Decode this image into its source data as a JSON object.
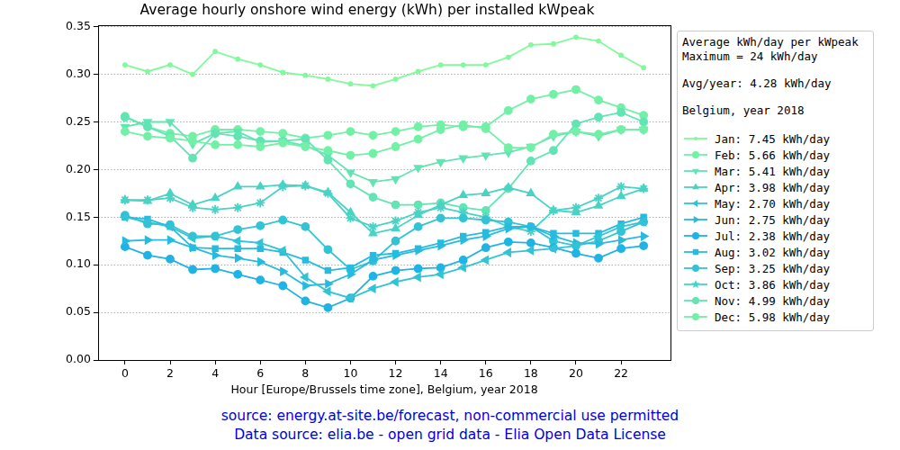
{
  "chart_data": {
    "type": "line",
    "title": "Average hourly onshore wind energy (kWh) per installed kWpeak",
    "x_label": "Hour [Europe/Brussels time zone], Belgium, year 2018",
    "x": [
      0,
      1,
      2,
      3,
      4,
      5,
      6,
      7,
      8,
      9,
      10,
      11,
      12,
      13,
      14,
      15,
      16,
      17,
      18,
      19,
      20,
      21,
      22,
      23
    ],
    "xlim": [
      -1.2,
      24.2
    ],
    "xticks": [
      0,
      2,
      4,
      6,
      8,
      10,
      12,
      14,
      16,
      18,
      20,
      22
    ],
    "ylim": [
      0,
      0.352
    ],
    "yticks": [
      {
        "value": 0,
        "label": "0.00"
      },
      0.05,
      {
        "value": 0.1,
        "label": "0.10"
      },
      0.15,
      {
        "value": 0.2,
        "label": "0.20"
      },
      0.25,
      {
        "value": 0.3,
        "label": "0.30"
      },
      0.35
    ],
    "grid": "y",
    "legend": "right",
    "legend_title": [
      [
        "Average kWh/day per kWpeak",
        "Maximum = 24 kWh/day"
      ],
      [
        "Avg/year: 4.28 kWh/day"
      ],
      [
        "Belgium, year 2018"
      ]
    ],
    "annotations": [
      "source: energy.at-site.be/forecast, non-commercial use permitted",
      "Data source: elia.be - open grid data - Elia Open Data License"
    ],
    "series": [
      {
        "name": "Jan: 7.45 kWh/day",
        "color": "#80fa9a",
        "marker": "point",
        "values": [
          0.31,
          0.303,
          0.31,
          0.3,
          0.324,
          0.316,
          0.31,
          0.302,
          0.299,
          0.295,
          0.29,
          0.288,
          0.295,
          0.303,
          0.31,
          0.31,
          0.31,
          0.318,
          0.331,
          0.332,
          0.339,
          0.335,
          0.32,
          0.307
        ]
      },
      {
        "name": "Feb: 5.66 kWh/day",
        "color": "#72f0a6",
        "marker": "circle",
        "values": [
          0.24,
          0.235,
          0.233,
          0.23,
          0.226,
          0.226,
          0.224,
          0.228,
          0.224,
          0.22,
          0.215,
          0.217,
          0.224,
          0.232,
          0.242,
          0.247,
          0.243,
          0.223,
          0.223,
          0.237,
          0.24,
          0.237,
          0.242,
          0.242
        ]
      },
      {
        "name": "Mar: 5.41 kWh/day",
        "color": "#62e4b4",
        "marker": "triangle_down",
        "values": [
          0.245,
          0.25,
          0.25,
          0.227,
          0.238,
          0.24,
          0.229,
          0.23,
          0.225,
          0.215,
          0.197,
          0.187,
          0.19,
          0.202,
          0.208,
          0.212,
          0.215,
          0.218,
          0.224,
          0.235,
          0.24,
          0.235,
          0.242,
          0.242
        ]
      },
      {
        "name": "Apr: 3.98 kWh/day",
        "color": "#48d3c5",
        "marker": "triangle_up",
        "values": [
          0.168,
          0.167,
          0.175,
          0.163,
          0.17,
          0.182,
          0.182,
          0.184,
          0.183,
          0.176,
          0.155,
          0.133,
          0.138,
          0.152,
          0.163,
          0.173,
          0.175,
          0.181,
          0.175,
          0.157,
          0.155,
          0.162,
          0.172,
          0.18
        ]
      },
      {
        "name": "May: 2.70 kWh/day",
        "color": "#32c4d5",
        "marker": "triangle_left",
        "values": [
          0.15,
          0.145,
          0.14,
          0.128,
          0.13,
          0.125,
          0.123,
          0.115,
          0.087,
          0.072,
          0.065,
          0.075,
          0.082,
          0.087,
          0.09,
          0.097,
          0.105,
          0.113,
          0.115,
          0.117,
          0.12,
          0.13,
          0.14,
          0.145
        ]
      },
      {
        "name": "Jun: 2.75 kWh/day",
        "color": "#26bbdf",
        "marker": "triangle_right",
        "values": [
          0.125,
          0.126,
          0.126,
          0.118,
          0.11,
          0.107,
          0.103,
          0.093,
          0.078,
          0.08,
          0.09,
          0.105,
          0.11,
          0.115,
          0.12,
          0.126,
          0.13,
          0.138,
          0.14,
          0.13,
          0.123,
          0.122,
          0.126,
          0.13
        ]
      },
      {
        "name": "Jul: 2.38 kWh/day",
        "color": "#1fb3e6",
        "marker": "circle",
        "values": [
          0.119,
          0.11,
          0.106,
          0.095,
          0.096,
          0.09,
          0.084,
          0.078,
          0.062,
          0.055,
          0.065,
          0.088,
          0.094,
          0.096,
          0.097,
          0.105,
          0.118,
          0.124,
          0.123,
          0.118,
          0.112,
          0.107,
          0.117,
          0.12
        ]
      },
      {
        "name": "Aug: 3.02 kWh/day",
        "color": "#26bbdf",
        "marker": "square",
        "values": [
          0.15,
          0.148,
          0.14,
          0.118,
          0.117,
          0.117,
          0.117,
          0.113,
          0.105,
          0.094,
          0.097,
          0.11,
          0.112,
          0.117,
          0.123,
          0.13,
          0.134,
          0.14,
          0.14,
          0.133,
          0.133,
          0.133,
          0.143,
          0.15
        ]
      },
      {
        "name": "Sep: 3.25 kWh/day",
        "color": "#32c4d5",
        "marker": "hexagon",
        "values": [
          0.152,
          0.143,
          0.142,
          0.13,
          0.13,
          0.137,
          0.141,
          0.147,
          0.14,
          0.116,
          0.095,
          0.104,
          0.125,
          0.14,
          0.149,
          0.149,
          0.147,
          0.145,
          0.14,
          0.125,
          0.12,
          0.125,
          0.135,
          0.145
        ]
      },
      {
        "name": "Oct: 3.86 kWh/day",
        "color": "#48d3c5",
        "marker": "star",
        "values": [
          0.168,
          0.168,
          0.17,
          0.16,
          0.158,
          0.16,
          0.165,
          0.182,
          0.183,
          0.175,
          0.149,
          0.14,
          0.146,
          0.155,
          0.16,
          0.155,
          0.15,
          0.14,
          0.135,
          0.157,
          0.16,
          0.17,
          0.182,
          0.18
        ]
      },
      {
        "name": "Nov: 4.99 kWh/day",
        "color": "#62e4b4",
        "marker": "octagon",
        "values": [
          0.255,
          0.245,
          0.235,
          0.212,
          0.238,
          0.235,
          0.23,
          0.23,
          0.232,
          0.21,
          0.185,
          0.171,
          0.163,
          0.163,
          0.165,
          0.16,
          0.157,
          0.18,
          0.209,
          0.22,
          0.248,
          0.255,
          0.26,
          0.25
        ]
      },
      {
        "name": "Dec: 5.98 kWh/day",
        "color": "#72f0a6",
        "marker": "circle",
        "values": [
          0.256,
          0.245,
          0.238,
          0.235,
          0.242,
          0.242,
          0.24,
          0.238,
          0.233,
          0.236,
          0.24,
          0.236,
          0.24,
          0.245,
          0.247,
          0.245,
          0.245,
          0.262,
          0.274,
          0.279,
          0.284,
          0.273,
          0.265,
          0.257
        ]
      }
    ]
  }
}
